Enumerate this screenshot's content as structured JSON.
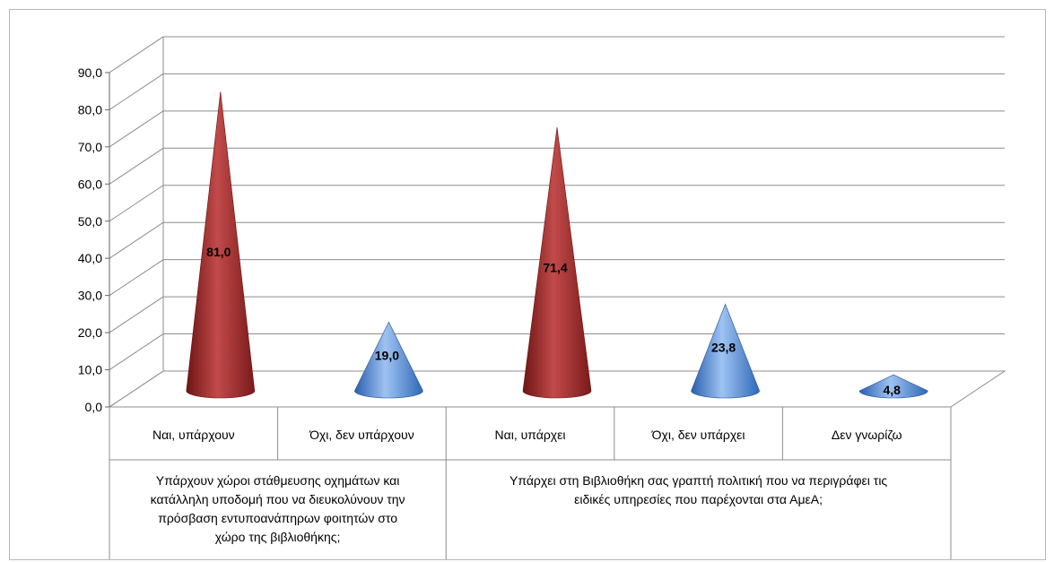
{
  "chart_data": {
    "type": "bar",
    "mark_shape": "cone",
    "title": "",
    "xlabel": "",
    "ylabel": "",
    "ylim": [
      0,
      90
    ],
    "yticks": [
      "0,0",
      "10,0",
      "20,0",
      "30,0",
      "40,0",
      "50,0",
      "60,0",
      "70,0",
      "80,0",
      "90,0"
    ],
    "grid": true,
    "legend": "none",
    "categories": [
      "Ναι, υπάρχουν",
      "Όχι, δεν υπάρχουν",
      "Ναι, υπάρχει",
      "Όχι, δεν υπάρχει",
      "Δεν γνωρίζω"
    ],
    "values": [
      81.0,
      19.0,
      71.4,
      23.8,
      4.8
    ],
    "data_labels": [
      "81,0",
      "19,0",
      "71,4",
      "23,8",
      "4,8"
    ],
    "point_colors": [
      "#b83a3a",
      "#3f7fd0",
      "#b83a3a",
      "#3f7fd0",
      "#3f7fd0"
    ],
    "groups": [
      {
        "label_lines": [
          "Υπάρχουν χώροι στάθμευσης οχημάτων και",
          "κατάλληλη υποδομή που να διευκολύνουν την",
          "πρόσβαση εντυποανάπηρων φοιτητών στο",
          "χώρο της βιβλιοθήκης;"
        ],
        "category_count": 2
      },
      {
        "label_lines": [
          "Υπάρχει στη Βιβλιοθήκη σας γραπτή πολιτική που να περιγράφει τις",
          "ειδικές υπηρεσίες που παρέχονται στα ΑμεΑ;"
        ],
        "category_count": 3
      }
    ]
  }
}
